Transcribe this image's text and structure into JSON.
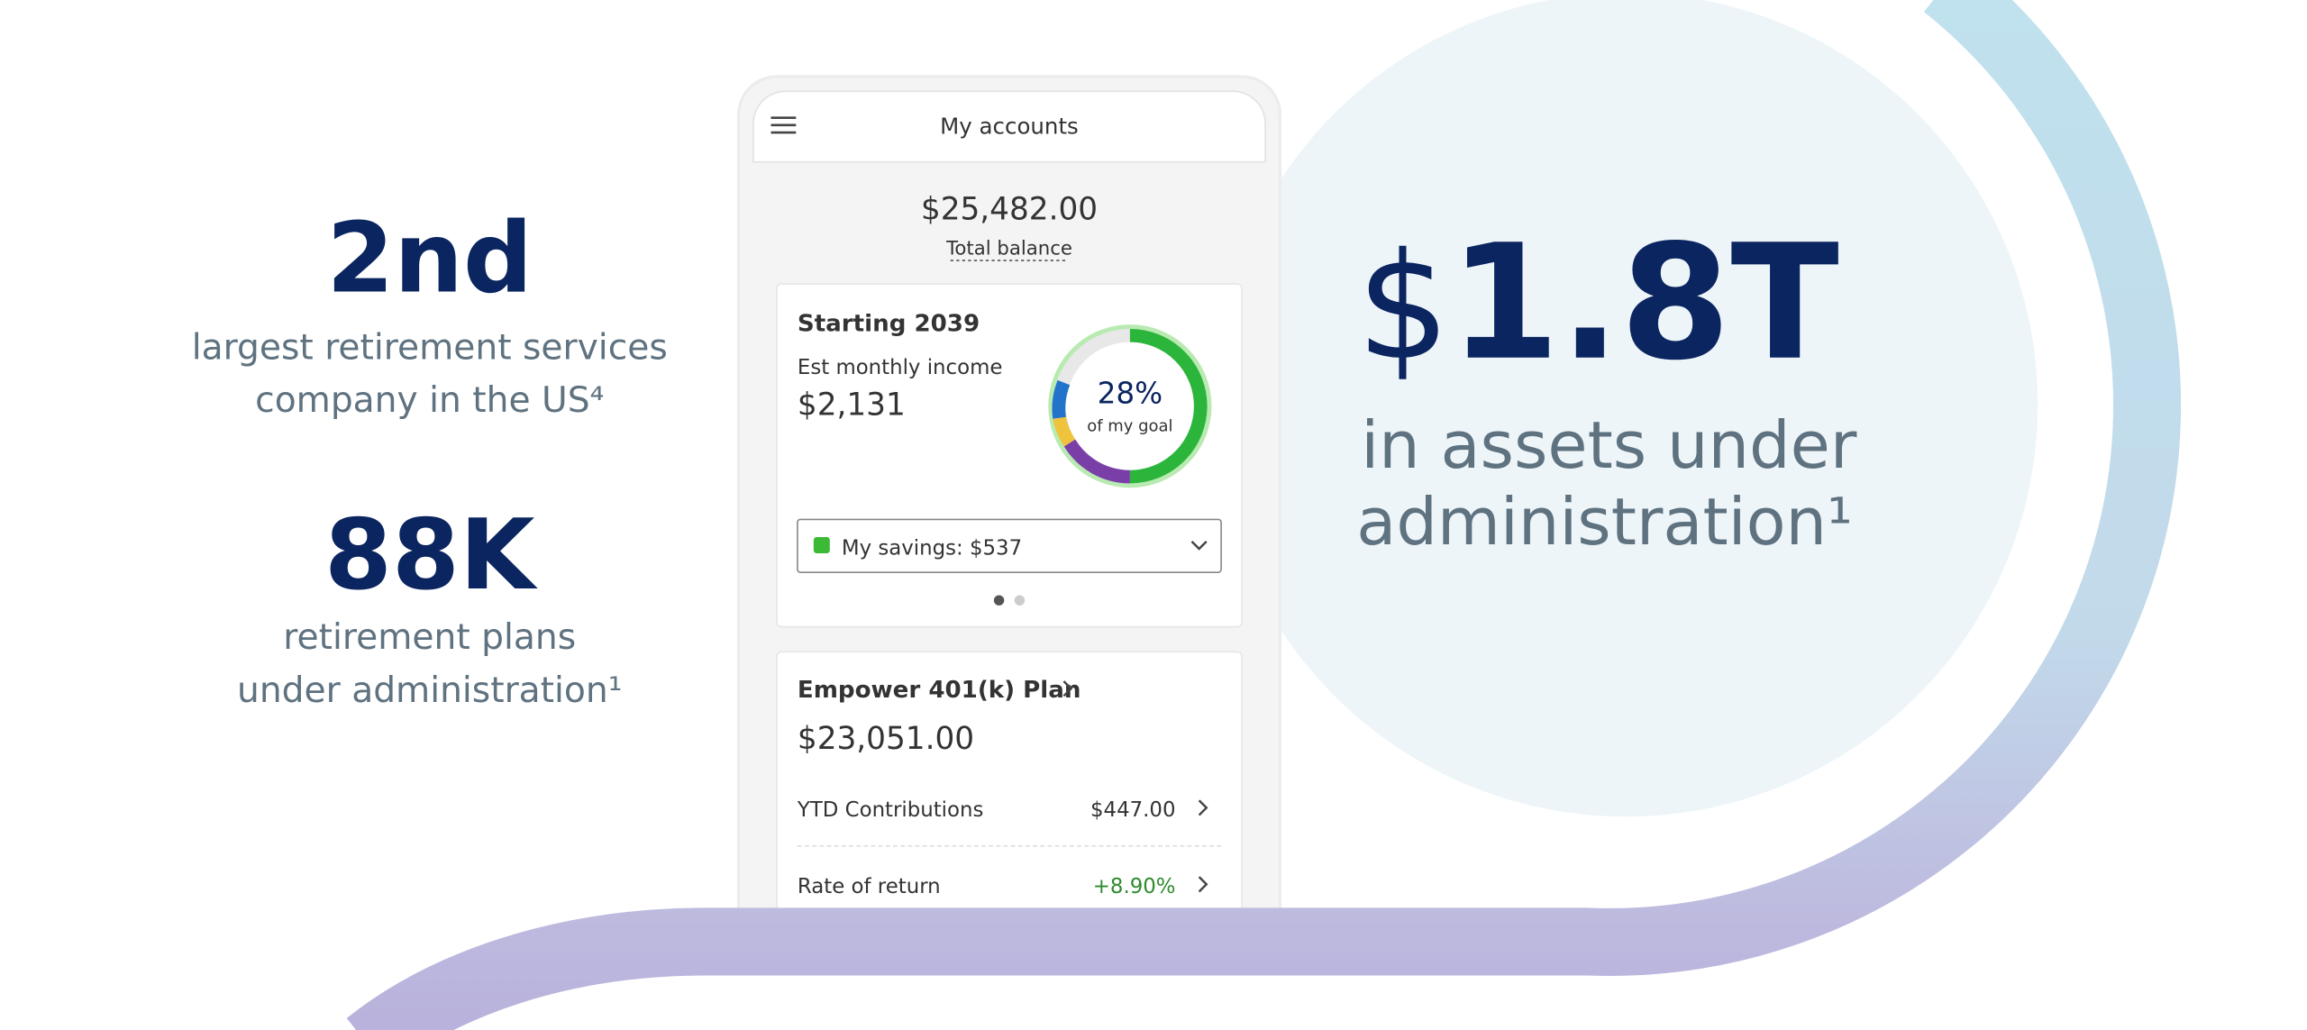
{
  "stats": [
    {
      "value": "2nd",
      "description": [
        "largest retirement services",
        "company in the US⁴"
      ]
    },
    {
      "value": "88K",
      "description": [
        "retirement plans",
        "under administration¹"
      ]
    }
  ],
  "headline": {
    "currency": "$",
    "value": "1.8T",
    "description": [
      "in assets under",
      "administration¹"
    ]
  },
  "phone": {
    "header": "My accounts",
    "total_balance": "$25,482.00",
    "total_balance_label": "Total balance",
    "income_card": {
      "title": "Starting 2039",
      "label": "Est monthly income",
      "amount": "$2,131",
      "goal_percent": "28%",
      "goal_label": "of my goal",
      "savings": "My savings: $537"
    },
    "plan_card": {
      "title": "Empower 401(k) Plan",
      "balance": "$23,051.00",
      "rows": [
        {
          "label": "YTD Contributions",
          "value": "$447.00"
        },
        {
          "label": "Rate of return",
          "value": "+8.90%"
        }
      ]
    }
  }
}
